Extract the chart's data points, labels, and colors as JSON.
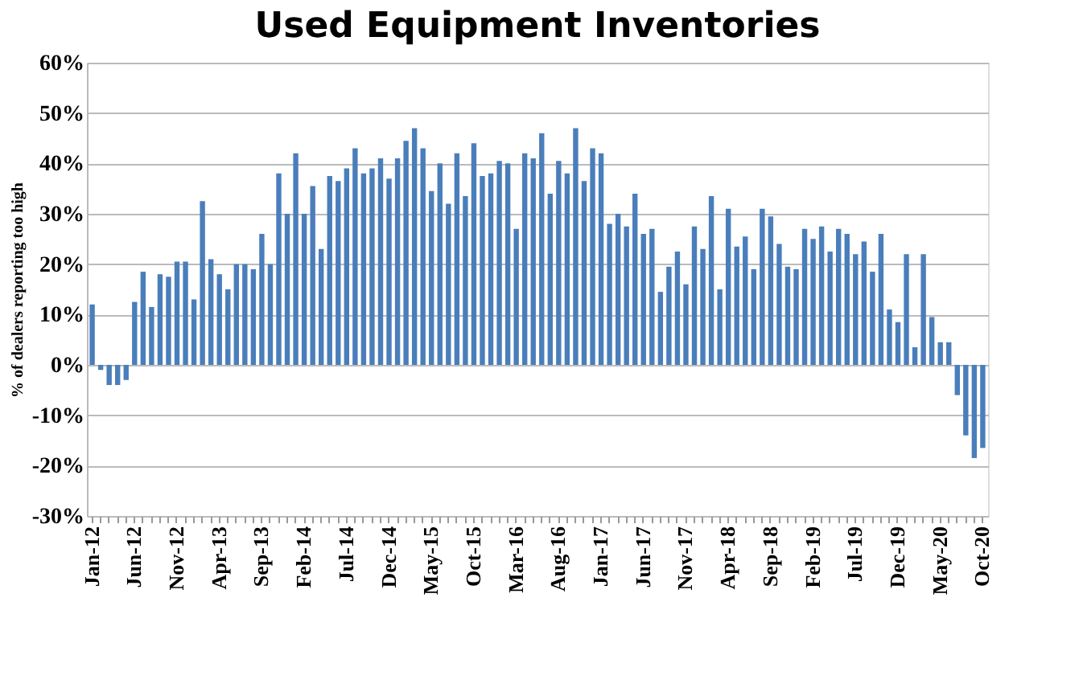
{
  "chart_data": {
    "type": "bar",
    "title": "Used Equipment Inventories",
    "ylabel": "% of dealers reporting too high",
    "categories": [
      "Jan-12",
      null,
      null,
      null,
      null,
      "Jun-12",
      null,
      null,
      null,
      null,
      "Nov-12",
      null,
      null,
      null,
      null,
      "Apr-13",
      null,
      null,
      null,
      null,
      "Sep-13",
      null,
      null,
      null,
      null,
      "Feb-14",
      null,
      null,
      null,
      null,
      "Jul-14",
      null,
      null,
      null,
      null,
      "Dec-14",
      null,
      null,
      null,
      null,
      "May-15",
      null,
      null,
      null,
      null,
      "Oct-15",
      null,
      null,
      null,
      null,
      "Mar-16",
      null,
      null,
      null,
      null,
      "Aug-16",
      null,
      null,
      null,
      null,
      "Jan-17",
      null,
      null,
      null,
      null,
      "Jun-17",
      null,
      null,
      null,
      null,
      "Nov-17",
      null,
      null,
      null,
      null,
      "Apr-18",
      null,
      null,
      null,
      null,
      "Sep-18",
      null,
      null,
      null,
      null,
      "Feb-19",
      null,
      null,
      null,
      null,
      "Jul-19",
      null,
      null,
      null,
      null,
      "Dec-19",
      null,
      null,
      null,
      null,
      "May-20",
      null,
      null,
      null,
      null,
      "Oct-20"
    ],
    "values": [
      12,
      -1,
      -4,
      -4,
      -3,
      12.5,
      18.5,
      11.5,
      18,
      17.5,
      20.5,
      20.5,
      13,
      32.5,
      21,
      18,
      15,
      20,
      20,
      19,
      26,
      20,
      38,
      30,
      42,
      30,
      35.5,
      23,
      37.5,
      36.5,
      39,
      43,
      38,
      39,
      41,
      37,
      41,
      44.5,
      47,
      43,
      34.5,
      40,
      32,
      42,
      33.5,
      44,
      37.5,
      38,
      40.5,
      40,
      27,
      42,
      41,
      46,
      34,
      40.5,
      38,
      47,
      36.5,
      43,
      42,
      28,
      30,
      27.5,
      34,
      26,
      27,
      14.5,
      19.5,
      22.5,
      16,
      27.5,
      23,
      33.5,
      15,
      31,
      23.5,
      25.5,
      19,
      31,
      29.5,
      24,
      19.5,
      19,
      27,
      25,
      27.5,
      22.5,
      27,
      26,
      22,
      24.5,
      18.5,
      26,
      11,
      8.5,
      22,
      3.5,
      22,
      9.5,
      4.5,
      4.5,
      -6,
      -14,
      -18.5,
      -16.5
    ],
    "color": "#4a7ebb",
    "ylim": [
      -30,
      60
    ],
    "yticks": [
      {
        "value": -30,
        "label": "-30%"
      },
      {
        "value": -20,
        "label": "-20%"
      },
      {
        "value": -10,
        "label": "-10%"
      },
      {
        "value": 0,
        "label": "0%"
      },
      {
        "value": 10,
        "label": "10%"
      },
      {
        "value": 20,
        "label": "20%"
      },
      {
        "value": 30,
        "label": "30%"
      },
      {
        "value": 40,
        "label": "40%"
      },
      {
        "value": 50,
        "label": "50%"
      },
      {
        "value": 60,
        "label": "60%"
      }
    ],
    "grid": "y"
  }
}
